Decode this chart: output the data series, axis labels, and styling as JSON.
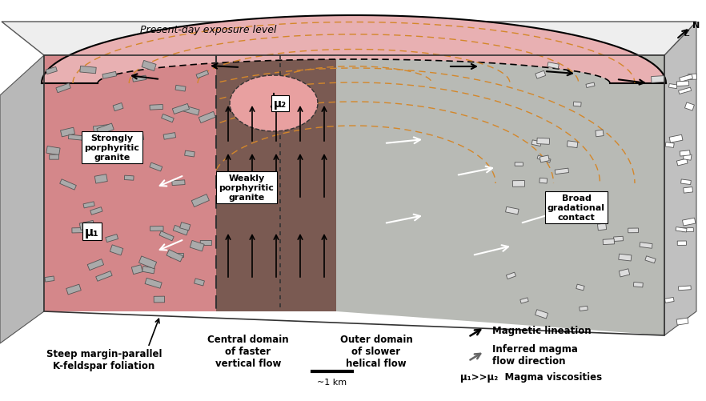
{
  "bg_color": "#ffffff",
  "fig_width": 8.82,
  "fig_height": 5.02,
  "colors": {
    "pink_granite": "#d4878a",
    "pink_light": "#e8b0b2",
    "pink_top": "#e8aaaa",
    "dark_brown": "#7a5a52",
    "medium_brown": "#9a7060",
    "light_gray": "#c8c8c8",
    "gray_side": "#b0b0b0",
    "white_top": "#f0f0f0",
    "orange_dashes": "#d4872a",
    "dark_dashes": "#333333",
    "mu2_pink": "#e8a0a0"
  },
  "labels": {
    "exposure": "Present-day exposure level",
    "strongly_porphyritic": "Strongly\nporphyritic\ngranite",
    "weakly_porphyritic": "Weakly\nporphyritic\ngranite",
    "broad_contact": "Broad\ngradational\ncontact",
    "mu1": "μ₁",
    "mu2": "μ₂",
    "central_domain": "Central domain\nof faster\nvertical flow",
    "outer_domain": "Outer domain\nof slower\nhelical flow",
    "steep_margin": "Steep margin-parallel\nK-feldspar foliation",
    "scale_label": "~1 km",
    "mag_lineation": "Magnetic lineation",
    "inferred_flow": "Inferred magma\nflow direction",
    "magma_visc": "Magma viscosities",
    "mu_ratio": "μ₁>>μ₂"
  }
}
